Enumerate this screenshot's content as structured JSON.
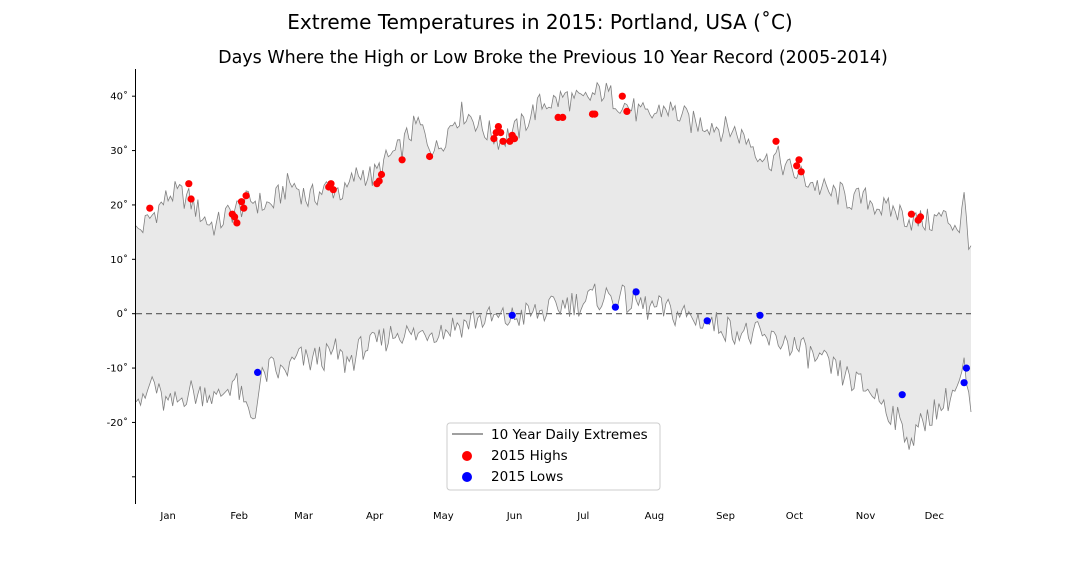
{
  "chart_data": {
    "type": "line",
    "title": "Extreme Temperatures in 2015: Portland, USA (˚C)",
    "subtitle": "Days Where the High or Low Broke the Previous 10 Year Record (2005-2014)",
    "xlabel": "",
    "ylabel": "",
    "xlim": [
      1,
      365
    ],
    "ylim": [
      -35,
      45
    ],
    "ytick_values": [
      40,
      30,
      20,
      10,
      0,
      -10,
      -20
    ],
    "ytick_labels": [
      "40˚",
      "30˚",
      "20˚",
      "10˚",
      "0˚",
      "-10˚",
      "-20˚"
    ],
    "extra_ytick_values": [
      -30
    ],
    "month_labels": [
      "Jan",
      "Feb",
      "Mar",
      "Apr",
      "May",
      "Jun",
      "Jul",
      "Aug",
      "Sep",
      "Oct",
      "Nov",
      "Dec"
    ],
    "month_label_days": [
      15,
      46,
      74,
      105,
      135,
      166,
      196,
      227,
      258,
      288,
      319,
      349
    ],
    "grid": false,
    "legend_position": "bottom-center",
    "reference_line": {
      "y": 0,
      "style": "dashed"
    },
    "fill_between_color": "#e9e9e9",
    "colors": {
      "extremes": "#808080",
      "highs": "#ff0000",
      "lows": "#0000ff"
    },
    "series": [
      {
        "name": "10 Year Daily Extremes",
        "kind": "band",
        "high_anchors": [
          [
            1,
            15
          ],
          [
            4,
            16
          ],
          [
            8,
            18
          ],
          [
            12,
            20
          ],
          [
            16,
            22
          ],
          [
            20,
            22
          ],
          [
            24,
            21
          ],
          [
            28,
            19
          ],
          [
            32,
            17
          ],
          [
            36,
            16
          ],
          [
            40,
            18
          ],
          [
            44,
            19
          ],
          [
            48,
            20
          ],
          [
            52,
            21
          ],
          [
            56,
            20
          ],
          [
            60,
            20
          ],
          [
            64,
            22
          ],
          [
            68,
            24
          ],
          [
            72,
            23
          ],
          [
            76,
            21
          ],
          [
            80,
            22
          ],
          [
            84,
            23
          ],
          [
            88,
            23
          ],
          [
            92,
            22
          ],
          [
            96,
            25
          ],
          [
            100,
            26
          ],
          [
            104,
            25
          ],
          [
            108,
            27
          ],
          [
            112,
            29
          ],
          [
            116,
            30
          ],
          [
            120,
            33
          ],
          [
            124,
            35
          ],
          [
            128,
            32
          ],
          [
            132,
            30
          ],
          [
            136,
            33
          ],
          [
            140,
            36
          ],
          [
            144,
            37
          ],
          [
            148,
            36
          ],
          [
            152,
            34
          ],
          [
            156,
            33
          ],
          [
            160,
            32
          ],
          [
            164,
            33
          ],
          [
            168,
            34
          ],
          [
            172,
            36
          ],
          [
            176,
            38
          ],
          [
            180,
            39
          ],
          [
            184,
            39
          ],
          [
            188,
            40
          ],
          [
            192,
            39
          ],
          [
            196,
            39
          ],
          [
            200,
            40
          ],
          [
            204,
            41
          ],
          [
            208,
            40
          ],
          [
            212,
            39
          ],
          [
            216,
            38
          ],
          [
            220,
            37
          ],
          [
            224,
            36
          ],
          [
            228,
            37
          ],
          [
            232,
            38
          ],
          [
            236,
            37
          ],
          [
            240,
            36
          ],
          [
            244,
            35
          ],
          [
            248,
            35
          ],
          [
            252,
            35
          ],
          [
            256,
            34
          ],
          [
            260,
            34
          ],
          [
            264,
            33
          ],
          [
            268,
            32
          ],
          [
            272,
            30
          ],
          [
            276,
            28
          ],
          [
            280,
            29
          ],
          [
            284,
            27
          ],
          [
            288,
            26
          ],
          [
            292,
            25
          ],
          [
            296,
            24
          ],
          [
            300,
            23
          ],
          [
            304,
            22
          ],
          [
            308,
            22
          ],
          [
            312,
            21
          ],
          [
            316,
            21
          ],
          [
            320,
            21
          ],
          [
            324,
            20
          ],
          [
            328,
            19
          ],
          [
            332,
            19
          ],
          [
            336,
            18
          ],
          [
            340,
            17
          ],
          [
            344,
            17
          ],
          [
            348,
            17
          ],
          [
            352,
            18
          ],
          [
            356,
            17
          ],
          [
            360,
            16
          ],
          [
            362,
            21
          ],
          [
            364,
            14
          ],
          [
            365,
            13
          ]
        ],
        "low_anchors": [
          [
            1,
            -14
          ],
          [
            4,
            -17
          ],
          [
            8,
            -12
          ],
          [
            12,
            -16
          ],
          [
            16,
            -17
          ],
          [
            20,
            -16
          ],
          [
            24,
            -14
          ],
          [
            28,
            -15
          ],
          [
            32,
            -14
          ],
          [
            36,
            -16
          ],
          [
            40,
            -14
          ],
          [
            44,
            -12
          ],
          [
            48,
            -17
          ],
          [
            52,
            -19
          ],
          [
            56,
            -12
          ],
          [
            60,
            -10
          ],
          [
            64,
            -11
          ],
          [
            68,
            -10
          ],
          [
            72,
            -8
          ],
          [
            76,
            -9
          ],
          [
            80,
            -8
          ],
          [
            84,
            -8
          ],
          [
            88,
            -7
          ],
          [
            92,
            -9
          ],
          [
            96,
            -8
          ],
          [
            100,
            -6
          ],
          [
            104,
            -6
          ],
          [
            108,
            -5
          ],
          [
            112,
            -4
          ],
          [
            116,
            -3
          ],
          [
            120,
            -4
          ],
          [
            124,
            -4
          ],
          [
            128,
            -3
          ],
          [
            132,
            -3
          ],
          [
            136,
            -3
          ],
          [
            140,
            -2
          ],
          [
            144,
            -2
          ],
          [
            148,
            -1
          ],
          [
            152,
            -1
          ],
          [
            156,
            -1
          ],
          [
            160,
            -1
          ],
          [
            164,
            -1
          ],
          [
            168,
            -0.5
          ],
          [
            172,
            0
          ],
          [
            176,
            0
          ],
          [
            180,
            0.5
          ],
          [
            184,
            1
          ],
          [
            188,
            2
          ],
          [
            192,
            2
          ],
          [
            196,
            2
          ],
          [
            200,
            3
          ],
          [
            204,
            3
          ],
          [
            208,
            3
          ],
          [
            212,
            3
          ],
          [
            216,
            2
          ],
          [
            220,
            2
          ],
          [
            224,
            1
          ],
          [
            228,
            1
          ],
          [
            232,
            0.5
          ],
          [
            236,
            0
          ],
          [
            240,
            0
          ],
          [
            244,
            -1
          ],
          [
            248,
            -1
          ],
          [
            252,
            -2
          ],
          [
            256,
            -2
          ],
          [
            260,
            -3
          ],
          [
            264,
            -3
          ],
          [
            268,
            -4
          ],
          [
            272,
            -4
          ],
          [
            276,
            -5
          ],
          [
            280,
            -5
          ],
          [
            284,
            -5
          ],
          [
            288,
            -6
          ],
          [
            292,
            -7
          ],
          [
            296,
            -8
          ],
          [
            300,
            -9
          ],
          [
            304,
            -10
          ],
          [
            308,
            -11
          ],
          [
            312,
            -12
          ],
          [
            316,
            -13
          ],
          [
            320,
            -14
          ],
          [
            324,
            -15
          ],
          [
            328,
            -17
          ],
          [
            332,
            -19
          ],
          [
            336,
            -22
          ],
          [
            340,
            -23
          ],
          [
            344,
            -20
          ],
          [
            348,
            -18
          ],
          [
            352,
            -17
          ],
          [
            356,
            -15
          ],
          [
            360,
            -13
          ],
          [
            362,
            -10
          ],
          [
            364,
            -16
          ],
          [
            365,
            -19
          ]
        ]
      },
      {
        "name": "2015 Highs",
        "kind": "scatter",
        "points": [
          [
            7,
            19.4
          ],
          [
            24,
            23.9
          ],
          [
            25,
            21.1
          ],
          [
            43,
            18.3
          ],
          [
            44,
            17.8
          ],
          [
            45,
            16.7
          ],
          [
            47,
            20.6
          ],
          [
            48,
            19.4
          ],
          [
            49,
            21.7
          ],
          [
            85,
            23.3
          ],
          [
            86,
            23.9
          ],
          [
            87,
            22.8
          ],
          [
            106,
            23.9
          ],
          [
            107,
            24.4
          ],
          [
            108,
            25.6
          ],
          [
            117,
            28.3
          ],
          [
            129,
            28.9
          ],
          [
            157,
            32.2
          ],
          [
            158,
            33.3
          ],
          [
            159,
            34.4
          ],
          [
            160,
            33.3
          ],
          [
            161,
            31.7
          ],
          [
            164,
            31.7
          ],
          [
            165,
            32.8
          ],
          [
            166,
            32.2
          ],
          [
            185,
            36.1
          ],
          [
            187,
            36.1
          ],
          [
            200,
            36.7
          ],
          [
            201,
            36.7
          ],
          [
            213,
            40.0
          ],
          [
            215,
            37.2
          ],
          [
            280,
            31.7
          ],
          [
            289,
            27.2
          ],
          [
            290,
            28.3
          ],
          [
            291,
            26.1
          ],
          [
            339,
            18.3
          ],
          [
            342,
            17.2
          ],
          [
            343,
            17.8
          ]
        ]
      },
      {
        "name": "2015 Lows",
        "kind": "scatter",
        "points": [
          [
            54,
            -10.8
          ],
          [
            165,
            -0.3
          ],
          [
            210,
            1.2
          ],
          [
            219,
            4.0
          ],
          [
            250,
            -1.3
          ],
          [
            273,
            -0.3
          ],
          [
            335,
            -14.9
          ],
          [
            362,
            -12.7
          ],
          [
            363,
            -10.0
          ]
        ]
      }
    ]
  }
}
